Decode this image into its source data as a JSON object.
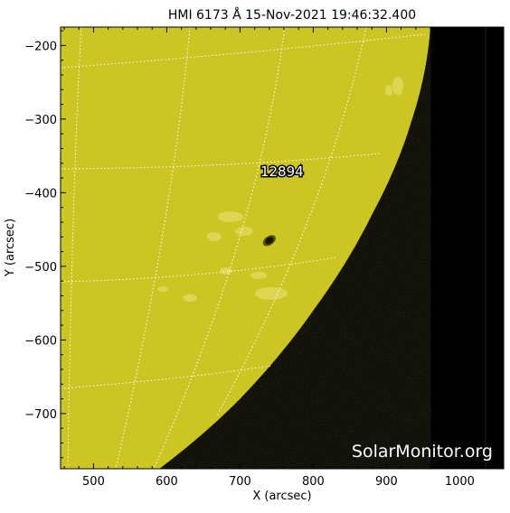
{
  "title": "HMI 6173 Å 15-Nov-2021 19:46:32.400",
  "xlabel": "X (arcsec)",
  "ylabel": "Y (arcsec)",
  "watermark": "SolarMonitor.org",
  "region_label": "12894",
  "colors": {
    "sun": "#c9c219",
    "space": "#000000",
    "grid": "#ffffff",
    "axis": "#000000"
  },
  "axes": {
    "xlim": [
      455,
      1060
    ],
    "ylim": [
      -775,
      -175
    ],
    "xticks": [
      500,
      600,
      700,
      800,
      900,
      1000
    ],
    "yticks": [
      -200,
      -300,
      -400,
      -500,
      -600,
      -700
    ]
  },
  "limb": {
    "points": [
      [
        960,
        -175
      ],
      [
        935,
        -300
      ],
      [
        880,
        -430
      ],
      [
        800,
        -560
      ],
      [
        700,
        -680
      ],
      [
        590,
        -775
      ]
    ]
  },
  "sunspot": {
    "x": 740,
    "y": -465
  }
}
